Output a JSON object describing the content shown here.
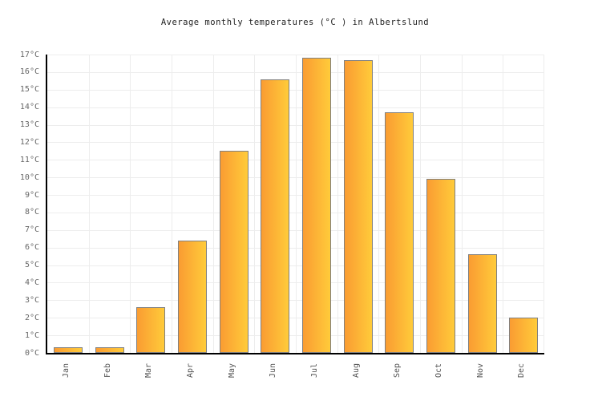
{
  "chart_data": {
    "type": "bar",
    "title": "Average monthly temperatures (°C ) in Albertslund",
    "categories": [
      "Jan",
      "Feb",
      "Mar",
      "Apr",
      "May",
      "Jun",
      "Jul",
      "Aug",
      "Sep",
      "Oct",
      "Nov",
      "Dec"
    ],
    "values": [
      0.3,
      0.3,
      2.6,
      6.4,
      11.5,
      15.6,
      16.8,
      16.7,
      13.7,
      9.9,
      5.6,
      2.0
    ],
    "unit": "°C",
    "xlabel": "",
    "ylabel": "",
    "ylim": [
      0,
      17
    ],
    "ytick_step": 1,
    "ytick_labels": [
      "0°C",
      "1°C",
      "2°C",
      "3°C",
      "4°C",
      "5°C",
      "6°C",
      "7°C",
      "8°C",
      "9°C",
      "10°C",
      "11°C",
      "12°C",
      "13°C",
      "14°C",
      "15°C",
      "16°C",
      "17°C"
    ],
    "grid": true,
    "legend": "none",
    "colors": {
      "bar_gradient_left": "#FA9C32",
      "bar_gradient_right": "#FFCB3A",
      "bar_border": "#808080",
      "gridline": "#ededed",
      "axis_line": "#000000",
      "tick_text": "#666666",
      "title_text": "#222222",
      "background": "#ffffff"
    }
  }
}
